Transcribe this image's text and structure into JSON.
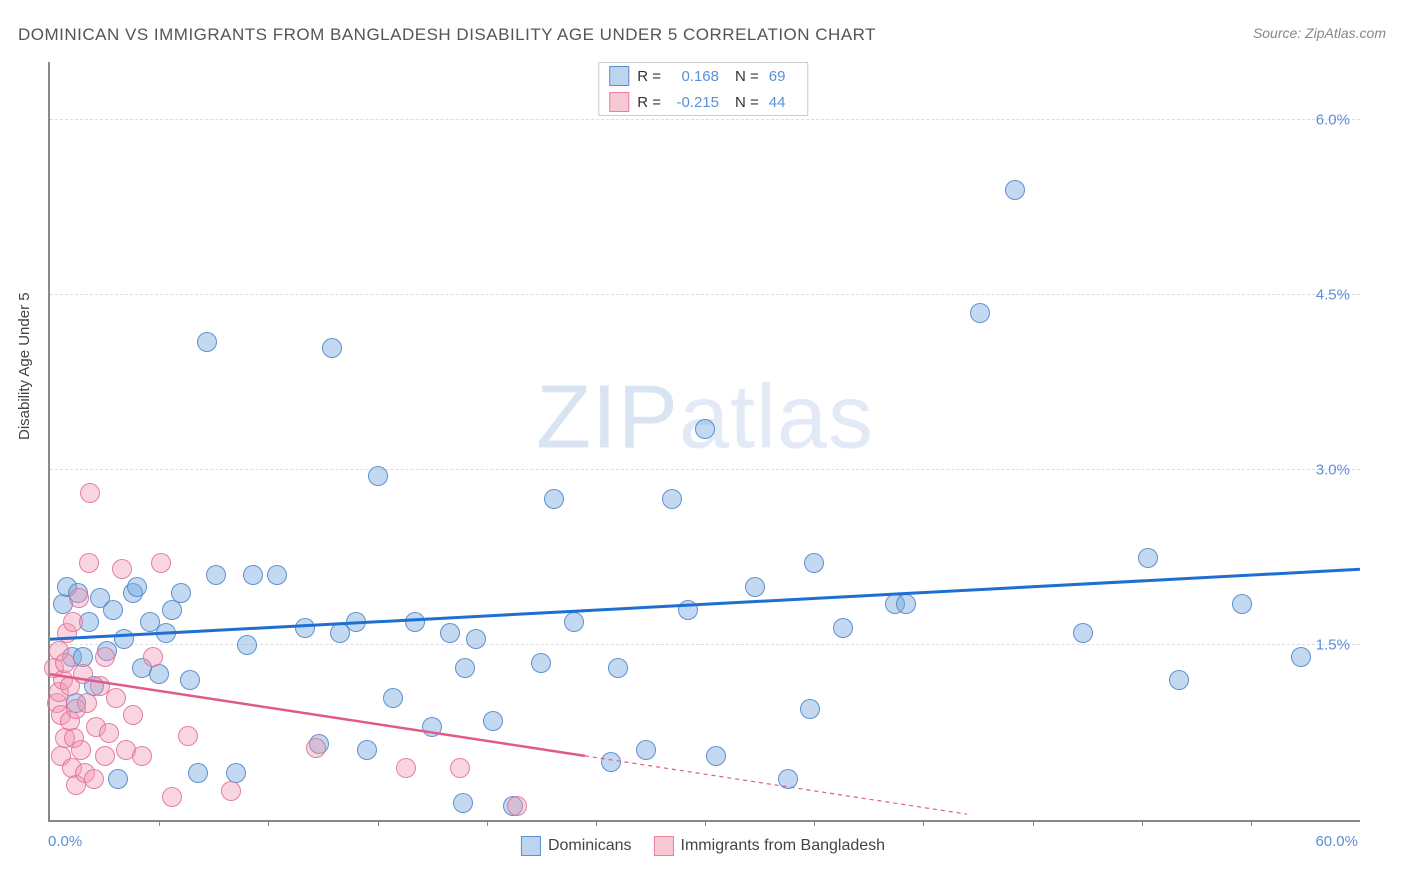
{
  "title": "DOMINICAN VS IMMIGRANTS FROM BANGLADESH DISABILITY AGE UNDER 5 CORRELATION CHART",
  "source": "Source: ZipAtlas.com",
  "watermark_a": "ZIP",
  "watermark_b": "atlas",
  "y_axis_label": "Disability Age Under 5",
  "chart": {
    "type": "scatter",
    "x_min": 0,
    "x_max": 60,
    "y_min": 0,
    "y_max": 6.5,
    "x_corner_left": "0.0%",
    "x_corner_right": "60.0%",
    "y_ticks": [
      {
        "v": 1.5,
        "label": "1.5%"
      },
      {
        "v": 3.0,
        "label": "3.0%"
      },
      {
        "v": 4.5,
        "label": "4.5%"
      },
      {
        "v": 6.0,
        "label": "6.0%"
      }
    ],
    "x_tick_positions": [
      5,
      10,
      15,
      20,
      25,
      30,
      35,
      40,
      45,
      50,
      55
    ],
    "marker_radius": 9,
    "colors": {
      "blue_fill": "#bcd4ee",
      "blue_stroke": "#5b8fd6",
      "pink_fill": "#f6c9d4",
      "pink_stroke": "#e97ea0",
      "grid": "#dddddd",
      "axis": "#888888",
      "trend_blue": "#1f6fd0",
      "trend_pink": "#e05a87"
    },
    "legend_top": [
      {
        "swatch": "blue",
        "r_label": "R =",
        "r": "0.168",
        "n_label": "N =",
        "n": "69"
      },
      {
        "swatch": "pink",
        "r_label": "R =",
        "r": "-0.215",
        "n_label": "N =",
        "n": "44"
      }
    ],
    "legend_bottom": [
      {
        "swatch": "blue",
        "label": "Dominicans"
      },
      {
        "swatch": "pink",
        "label": "Immigrants from Bangladesh"
      }
    ],
    "trend_lines": [
      {
        "color": "trend_blue",
        "width": 3,
        "x1": 0,
        "y1": 1.55,
        "x2": 60,
        "y2": 2.15,
        "dash_after_x": null
      },
      {
        "color": "trend_pink",
        "width": 2.5,
        "x1": 0,
        "y1": 1.25,
        "x2": 42,
        "y2": 0.05,
        "dash_after_x": 24.5
      }
    ],
    "series": [
      {
        "cls": "blue",
        "points": [
          [
            0.6,
            1.85
          ],
          [
            0.8,
            2.0
          ],
          [
            1.0,
            1.4
          ],
          [
            1.2,
            1.0
          ],
          [
            1.3,
            1.95
          ],
          [
            1.5,
            1.4
          ],
          [
            1.8,
            1.7
          ],
          [
            2.0,
            1.15
          ],
          [
            2.3,
            1.9
          ],
          [
            2.6,
            1.45
          ],
          [
            2.9,
            1.8
          ],
          [
            3.1,
            0.35
          ],
          [
            3.4,
            1.55
          ],
          [
            3.8,
            1.95
          ],
          [
            4.2,
            1.3
          ],
          [
            4.0,
            2.0
          ],
          [
            4.6,
            1.7
          ],
          [
            5.0,
            1.25
          ],
          [
            5.3,
            1.6
          ],
          [
            5.6,
            1.8
          ],
          [
            6.0,
            1.95
          ],
          [
            6.4,
            1.2
          ],
          [
            6.8,
            0.4
          ],
          [
            7.2,
            4.1
          ],
          [
            7.6,
            2.1
          ],
          [
            8.5,
            0.4
          ],
          [
            9.0,
            1.5
          ],
          [
            9.3,
            2.1
          ],
          [
            10.4,
            2.1
          ],
          [
            11.7,
            1.65
          ],
          [
            12.3,
            0.65
          ],
          [
            12.9,
            4.05
          ],
          [
            13.3,
            1.6
          ],
          [
            14.0,
            1.7
          ],
          [
            14.5,
            0.6
          ],
          [
            15.0,
            2.95
          ],
          [
            15.7,
            1.05
          ],
          [
            16.7,
            1.7
          ],
          [
            17.5,
            0.8
          ],
          [
            18.3,
            1.6
          ],
          [
            18.9,
            0.15
          ],
          [
            19.0,
            1.3
          ],
          [
            19.5,
            1.55
          ],
          [
            20.3,
            0.85
          ],
          [
            21.2,
            0.12
          ],
          [
            22.5,
            1.35
          ],
          [
            23.1,
            2.75
          ],
          [
            24.0,
            1.7
          ],
          [
            25.7,
            0.5
          ],
          [
            26.0,
            1.3
          ],
          [
            27.3,
            0.6
          ],
          [
            28.5,
            2.75
          ],
          [
            29.2,
            1.8
          ],
          [
            30.0,
            3.35
          ],
          [
            30.5,
            0.55
          ],
          [
            32.3,
            2.0
          ],
          [
            33.8,
            0.35
          ],
          [
            34.8,
            0.95
          ],
          [
            35.0,
            2.2
          ],
          [
            36.3,
            1.65
          ],
          [
            38.7,
            1.85
          ],
          [
            39.2,
            1.85
          ],
          [
            42.6,
            4.35
          ],
          [
            44.2,
            5.4
          ],
          [
            47.3,
            1.6
          ],
          [
            50.3,
            2.25
          ],
          [
            51.7,
            1.2
          ],
          [
            54.6,
            1.85
          ],
          [
            57.3,
            1.4
          ]
        ]
      },
      {
        "cls": "pink",
        "points": [
          [
            0.2,
            1.3
          ],
          [
            0.3,
            1.0
          ],
          [
            0.4,
            1.1
          ],
          [
            0.4,
            1.45
          ],
          [
            0.5,
            0.9
          ],
          [
            0.5,
            0.55
          ],
          [
            0.6,
            1.2
          ],
          [
            0.7,
            1.35
          ],
          [
            0.7,
            0.7
          ],
          [
            0.8,
            1.6
          ],
          [
            0.9,
            1.15
          ],
          [
            0.9,
            0.85
          ],
          [
            1.0,
            0.45
          ],
          [
            1.05,
            1.7
          ],
          [
            1.1,
            0.7
          ],
          [
            1.2,
            0.95
          ],
          [
            1.2,
            0.3
          ],
          [
            1.35,
            1.9
          ],
          [
            1.4,
            0.6
          ],
          [
            1.5,
            1.25
          ],
          [
            1.6,
            0.4
          ],
          [
            1.7,
            1.0
          ],
          [
            1.8,
            2.2
          ],
          [
            1.85,
            2.8
          ],
          [
            2.0,
            0.35
          ],
          [
            2.1,
            0.8
          ],
          [
            2.3,
            1.15
          ],
          [
            2.5,
            0.55
          ],
          [
            2.5,
            1.4
          ],
          [
            2.7,
            0.75
          ],
          [
            3.0,
            1.05
          ],
          [
            3.3,
            2.15
          ],
          [
            3.5,
            0.6
          ],
          [
            3.8,
            0.9
          ],
          [
            4.2,
            0.55
          ],
          [
            4.7,
            1.4
          ],
          [
            5.1,
            2.2
          ],
          [
            5.6,
            0.2
          ],
          [
            6.3,
            0.72
          ],
          [
            8.3,
            0.25
          ],
          [
            12.2,
            0.62
          ],
          [
            16.3,
            0.45
          ],
          [
            18.8,
            0.45
          ],
          [
            21.4,
            0.12
          ]
        ]
      }
    ]
  }
}
